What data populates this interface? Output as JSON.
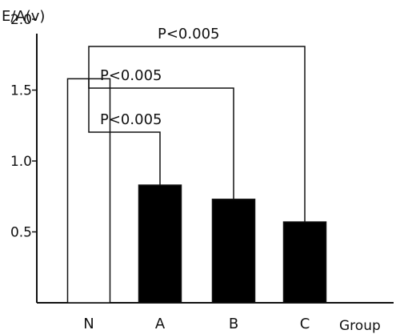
{
  "chart_data": {
    "type": "bar",
    "ylabel": "E/A(v)",
    "xlabel": "Group",
    "categories": [
      "N",
      "A",
      "B",
      "C"
    ],
    "values": [
      1.58,
      0.83,
      0.73,
      0.57
    ],
    "bar_fills": [
      "#ffffff",
      "#000000",
      "#000000",
      "#000000"
    ],
    "ylim": [
      0,
      2.7
    ],
    "yticks": [
      {
        "value": 0.5,
        "label": "0.5"
      },
      {
        "value": 1.0,
        "label": "1.0"
      },
      {
        "value": 1.5,
        "label": "1.5"
      },
      {
        "value": 2.0,
        "label": "2.0"
      }
    ],
    "grid": false,
    "annotations": [
      {
        "from": "N",
        "to": "A",
        "text": "P<0.005"
      },
      {
        "from": "N",
        "to": "B",
        "text": "P<0.005"
      },
      {
        "from": "N",
        "to": "C",
        "text": "P<0.005"
      }
    ]
  }
}
